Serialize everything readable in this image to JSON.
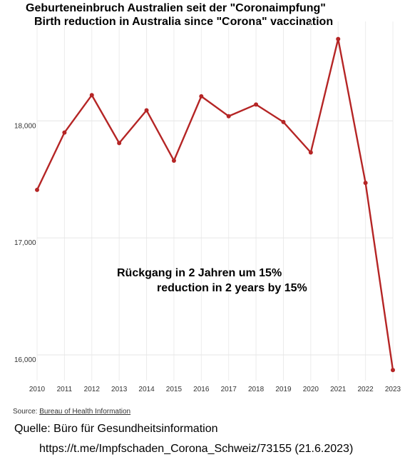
{
  "chart_data": {
    "type": "line",
    "title": "Geburteneinbruch Australien seit der \"Coronaimpfung\"",
    "subtitle": "Birth reduction in Australia since \"Corona\" vaccination",
    "x": [
      "2010",
      "2011",
      "2012",
      "2013",
      "2014",
      "2015",
      "2016",
      "2017",
      "2018",
      "2019",
      "2020",
      "2021",
      "2022",
      "2023"
    ],
    "series": [
      {
        "values": [
          17410,
          17900,
          18220,
          17810,
          18090,
          17660,
          18210,
          18040,
          18140,
          17990,
          17730,
          18700,
          17470,
          15870
        ]
      }
    ],
    "yticks": [
      "16,000",
      "17,000",
      "18,000"
    ],
    "ytick_values": [
      16000,
      17000,
      18000
    ],
    "ylim": [
      15780,
      18850
    ],
    "grid": true,
    "line_color": "#b52525",
    "annotations": [
      "Rückgang in 2 Jahren um 15%",
      "reduction in 2 years by 15%"
    ]
  },
  "source": {
    "label": "Source:",
    "link_text": "Bureau of Health Information"
  },
  "quelle": "Quelle: Büro für Gesundheitsinformation",
  "url": "https://t.me/Impfschaden_Corona_Schweiz/73155 (21.6.2023)"
}
